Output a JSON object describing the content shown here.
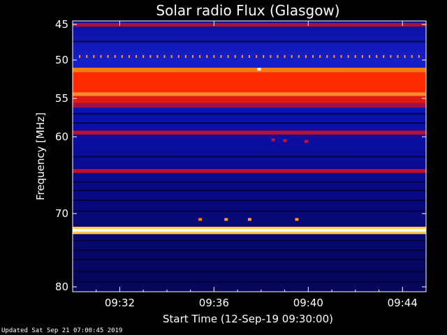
{
  "chart_data": {
    "type": "heatmap",
    "title": "Solar radio Flux (Glasgow)",
    "xlabel": "Start Time (12-Sep-19 09:30:00)",
    "ylabel": "Frequency [MHz]",
    "x_unit": "minutes after 09:30:00",
    "xlim": [
      0,
      15
    ],
    "ylim": [
      45,
      80
    ],
    "y_inverted": true,
    "x_ticks": [
      {
        "value": 2,
        "label": "09:32"
      },
      {
        "value": 6,
        "label": "09:36"
      },
      {
        "value": 10,
        "label": "09:40"
      },
      {
        "value": 14,
        "label": "09:44"
      }
    ],
    "y_ticks": [
      {
        "value": 45,
        "label": "45"
      },
      {
        "value": 50,
        "label": "50"
      },
      {
        "value": 55,
        "label": "55"
      },
      {
        "value": 60,
        "label": "60"
      },
      {
        "value": 70,
        "label": "70"
      },
      {
        "value": 80,
        "label": "80"
      }
    ],
    "background_color": "#0b0fa8",
    "color_scale": [
      "#000044",
      "#0a10b8",
      "#2a3cff",
      "#a00028",
      "#ff1a00",
      "#ff6a00",
      "#ffd040",
      "#ffffff"
    ],
    "bands": [
      {
        "from_mhz": 44.8,
        "to_mhz": 45.3,
        "color": "#b0102a"
      },
      {
        "from_mhz": 51.0,
        "to_mhz": 51.6,
        "color": "#ff7a10"
      },
      {
        "from_mhz": 51.6,
        "to_mhz": 54.2,
        "color": "#ff2a00"
      },
      {
        "from_mhz": 54.2,
        "to_mhz": 54.7,
        "color": "#ff8a2a"
      },
      {
        "from_mhz": 54.7,
        "to_mhz": 55.6,
        "color": "#e01a10"
      },
      {
        "from_mhz": 55.6,
        "to_mhz": 56.2,
        "color": "#a01040"
      },
      {
        "from_mhz": 59.2,
        "to_mhz": 59.7,
        "color": "#c0102a"
      },
      {
        "from_mhz": 64.2,
        "to_mhz": 64.7,
        "color": "#c0102a"
      },
      {
        "from_mhz": 71.8,
        "to_mhz": 72.1,
        "color": "#ffd040"
      },
      {
        "from_mhz": 72.1,
        "to_mhz": 72.5,
        "color": "#ffffff"
      },
      {
        "from_mhz": 72.5,
        "to_mhz": 72.8,
        "color": "#ffd040"
      }
    ],
    "dark_lines_mhz": [
      47.3,
      56.9,
      58.1,
      62.5,
      65.8,
      66.9,
      68.2,
      69.6,
      73.6,
      74.9,
      76.2,
      77.8,
      79.2
    ],
    "periodic_spikes": {
      "freq_mhz": 49.5,
      "start_min": 0.3,
      "end_min": 14.9,
      "step_min": 0.3,
      "color": "#ff9a20"
    },
    "bursts": [
      {
        "t_min": 5.4,
        "freq_mhz": 70.8,
        "color": "#ff7a00"
      },
      {
        "t_min": 6.5,
        "freq_mhz": 70.8,
        "color": "#ff9a20"
      },
      {
        "t_min": 7.5,
        "freq_mhz": 70.8,
        "color": "#ff9a20"
      },
      {
        "t_min": 9.5,
        "freq_mhz": 70.8,
        "color": "#ff9a20"
      },
      {
        "t_min": 7.9,
        "freq_mhz": 51.2,
        "color": "#ffffff"
      },
      {
        "t_min": 8.5,
        "freq_mhz": 60.4,
        "color": "#d01030"
      },
      {
        "t_min": 9.0,
        "freq_mhz": 60.5,
        "color": "#d01030"
      },
      {
        "t_min": 9.9,
        "freq_mhz": 60.6,
        "color": "#d01030"
      }
    ]
  },
  "footer": {
    "updated": "Updated Sat Sep 21 07:00:45 2019"
  }
}
